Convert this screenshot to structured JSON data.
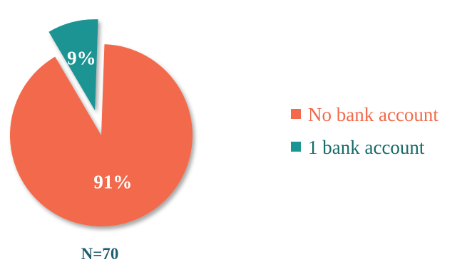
{
  "chart_data": {
    "type": "pie",
    "exploded": true,
    "shadow": true,
    "slices": [
      {
        "name": "No bank account",
        "value": 91,
        "label": "91%",
        "color": "#f26a4b",
        "text_color": "#ffffff"
      },
      {
        "name": "1 bank account",
        "value": 9,
        "label": "9%",
        "color": "#1b9494",
        "text_color": "#ffffff"
      }
    ],
    "legend": {
      "position": "right",
      "items": [
        {
          "label": "No bank account",
          "color": "#f26a4b",
          "text_color": "#f26a4b"
        },
        {
          "label": "1 bank account",
          "color": "#1b9494",
          "text_color": "#176a6a"
        }
      ]
    },
    "annotation": "N=70",
    "annotation_color": "#1f5f6f"
  }
}
